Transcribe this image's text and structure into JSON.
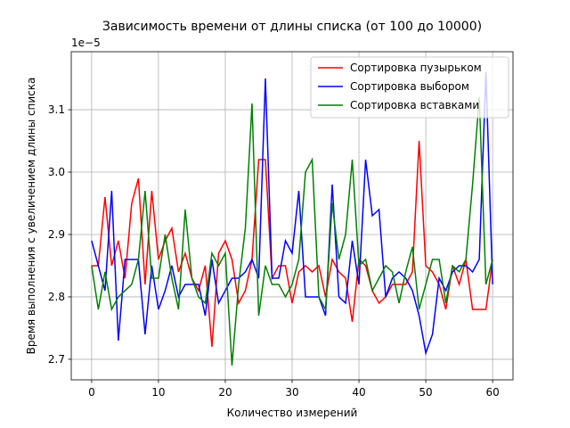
{
  "chart_data": {
    "type": "line",
    "title": "Зависимость времени от длины списка (от 100 до 10000)",
    "xlabel": "Количество измерений",
    "ylabel": "Время выполнения с увеличением длины списка",
    "y_offset_text": "1e−5",
    "x": [
      0,
      1,
      2,
      3,
      4,
      5,
      6,
      7,
      8,
      9,
      10,
      11,
      12,
      13,
      14,
      15,
      16,
      17,
      18,
      19,
      20,
      21,
      22,
      23,
      24,
      25,
      26,
      27,
      28,
      29,
      30,
      31,
      32,
      33,
      34,
      35,
      36,
      37,
      38,
      39,
      40,
      41,
      42,
      43,
      44,
      45,
      46,
      47,
      48,
      49,
      50,
      51,
      52,
      53,
      54,
      55,
      56,
      57,
      58,
      59,
      60
    ],
    "series": [
      {
        "name": "Сортировка пузырьком",
        "color": "#ff0000",
        "values": [
          2.85,
          2.85,
          2.96,
          2.85,
          2.89,
          2.83,
          2.95,
          2.99,
          2.82,
          2.97,
          2.86,
          2.89,
          2.91,
          2.84,
          2.87,
          2.83,
          2.81,
          2.85,
          2.72,
          2.87,
          2.89,
          2.86,
          2.79,
          2.81,
          2.86,
          3.02,
          3.02,
          2.83,
          2.85,
          2.85,
          2.79,
          2.84,
          2.85,
          2.84,
          2.85,
          2.8,
          2.86,
          2.84,
          2.83,
          2.76,
          2.86,
          2.85,
          2.81,
          2.79,
          2.8,
          2.82,
          2.82,
          2.82,
          2.84,
          3.05,
          2.85,
          2.84,
          2.82,
          2.78,
          2.85,
          2.82,
          2.86,
          2.78,
          2.78,
          2.78,
          2.86
        ]
      },
      {
        "name": "Сортировка выбором",
        "color": "#0000ff",
        "values": [
          2.89,
          2.85,
          2.81,
          2.97,
          2.73,
          2.86,
          2.86,
          2.86,
          2.74,
          2.85,
          2.78,
          2.81,
          2.85,
          2.8,
          2.82,
          2.82,
          2.82,
          2.77,
          2.86,
          2.79,
          2.81,
          2.83,
          2.83,
          2.84,
          2.86,
          2.83,
          3.15,
          2.83,
          2.83,
          2.89,
          2.87,
          2.97,
          2.8,
          2.8,
          2.8,
          2.77,
          2.98,
          2.8,
          2.79,
          2.89,
          2.82,
          3.02,
          2.93,
          2.94,
          2.8,
          2.83,
          2.84,
          2.83,
          2.81,
          2.77,
          2.71,
          2.74,
          2.83,
          2.81,
          2.84,
          2.85,
          2.85,
          2.84,
          2.86,
          3.16,
          2.82
        ]
      },
      {
        "name": "Сортировка вставками",
        "color": "#008000",
        "values": [
          2.85,
          2.78,
          2.84,
          2.78,
          2.8,
          2.81,
          2.82,
          2.86,
          2.97,
          2.83,
          2.83,
          2.9,
          2.83,
          2.78,
          2.94,
          2.83,
          2.8,
          2.79,
          2.87,
          2.85,
          2.87,
          2.69,
          2.82,
          2.91,
          3.11,
          2.77,
          2.85,
          2.82,
          2.82,
          2.8,
          2.82,
          2.86,
          3.0,
          3.02,
          2.8,
          2.78,
          2.95,
          2.86,
          2.9,
          3.02,
          2.85,
          2.86,
          2.81,
          2.83,
          2.85,
          2.84,
          2.79,
          2.84,
          2.88,
          2.78,
          2.82,
          2.86,
          2.86,
          2.79,
          2.85,
          2.84,
          2.86,
          2.98,
          3.12,
          2.82,
          2.86
        ]
      }
    ],
    "xlim": [
      -3.05,
      63.05
    ],
    "xticks": [
      0,
      10,
      20,
      30,
      40,
      50,
      60
    ],
    "ylim": [
      2.667,
      3.193
    ],
    "yticks": [
      2.7,
      2.8,
      2.9,
      {
        "value": 3,
        "label": "3.0"
      },
      3.1
    ],
    "grid": true,
    "legend": "upper right"
  }
}
